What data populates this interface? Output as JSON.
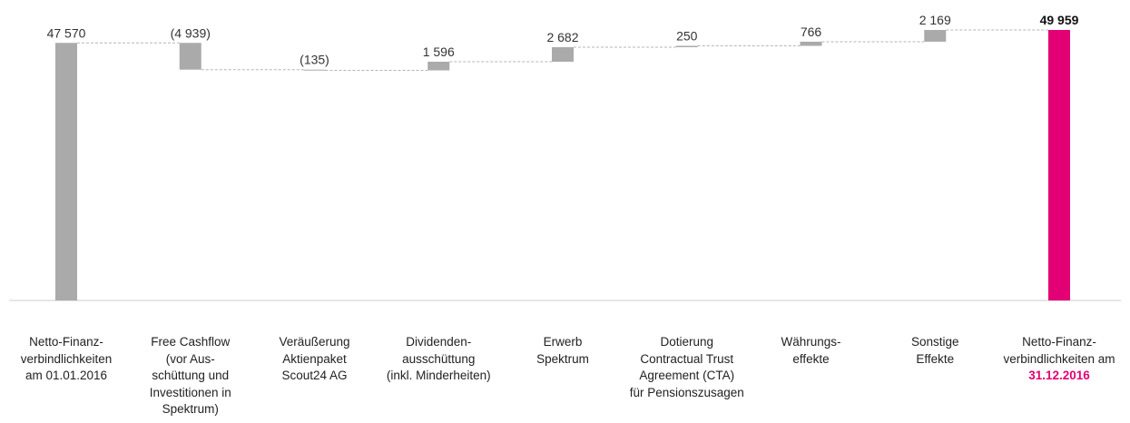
{
  "chart_data": {
    "type": "bar",
    "subtype": "waterfall",
    "categories": [
      "Netto-Finanz-\nverbindlichkeiten\nam 01.01.2016",
      "Free Cashflow\n(vor Aus-\nschüttung und\nInvestitionen in\nSpektrum)",
      "Veräußerung\nAktienpaket\nScout24 AG",
      "Dividenden-\nausschüttung\n(inkl. Minderheiten)",
      "Erwerb\nSpektrum",
      "Dotierung\nContractual Trust\nAgreement (CTA)\nfür Pensionszusagen",
      "Währungs-\neffekte",
      "Sonstige\nEffekte",
      "Netto-Finanz-\nverbindlichkeiten am"
    ],
    "category_highlight_last": "31.12.2016",
    "values": [
      47570,
      -4939,
      -135,
      1596,
      2682,
      250,
      766,
      2169,
      49959
    ],
    "labels": [
      "47 570",
      "(4 939)",
      "(135)",
      "1 596",
      "2 682",
      "250",
      "766",
      "2 169",
      "49 959"
    ],
    "kinds": [
      "total",
      "delta",
      "delta",
      "delta",
      "delta",
      "delta",
      "delta",
      "delta",
      "total"
    ],
    "colors": {
      "total_start": "#aaaaaa",
      "delta": "#aaaaaa",
      "total_end": "#e20074",
      "connector": "#b5b5b5",
      "baseline": "#cccccc",
      "highlight": "#e20074"
    },
    "title": "",
    "xlabel": "",
    "ylabel": "",
    "grid": false
  }
}
